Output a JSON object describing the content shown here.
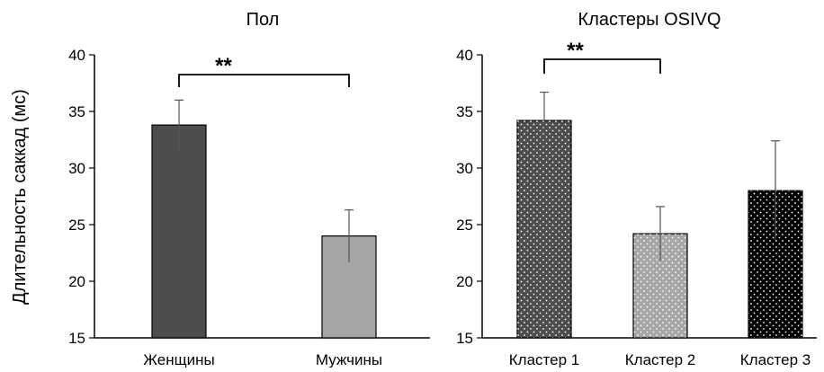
{
  "figure": {
    "ylabel": "Длительность саккад (мс)"
  },
  "chart_data": [
    {
      "type": "bar",
      "title": "Пол",
      "categories": [
        "Женщины",
        "Мужчины"
      ],
      "values": [
        33.8,
        24.0
      ],
      "errors": [
        2.2,
        2.3
      ],
      "ylim": [
        15,
        40
      ],
      "yticks": [
        15,
        20,
        25,
        30,
        35,
        40
      ],
      "ylabel": "Длительность саккад (мс)",
      "bar_colors": [
        "#4d4d4d",
        "#a6a6a6"
      ],
      "bar_patterns": [
        "solid",
        "solid"
      ],
      "significance": {
        "from": 0,
        "to": 1,
        "label": "**"
      },
      "grid": false
    },
    {
      "type": "bar",
      "title": "Кластеры OSIVQ",
      "categories": [
        "Кластер 1",
        "Кластер 2",
        "Кластер 3"
      ],
      "values": [
        34.2,
        24.2,
        28.0
      ],
      "errors": [
        2.5,
        2.4,
        4.4
      ],
      "ylim": [
        15,
        40
      ],
      "yticks": [
        15,
        20,
        25,
        30,
        35,
        40
      ],
      "bar_colors": [
        "#4d4d4d",
        "#a6a6a6",
        "#000000"
      ],
      "bar_patterns": [
        "dots",
        "dots",
        "dots"
      ],
      "significance": {
        "from": 0,
        "to": 1,
        "label": "**"
      },
      "grid": false
    }
  ]
}
